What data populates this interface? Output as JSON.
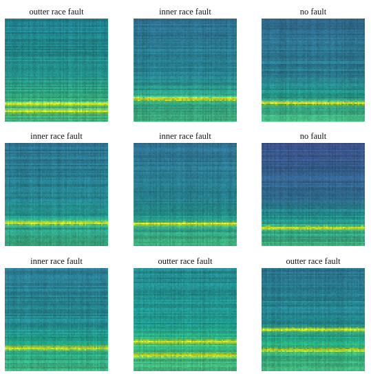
{
  "chart_data": {
    "type": "heatmap",
    "colormap": "viridis",
    "layout": "3x3 grid",
    "panels": [
      {
        "title": "outter race fault",
        "colors": [
          "#1f7f8c",
          "#238f88",
          "#2fa57f",
          "#83d04b",
          "#d2e21b",
          "#44b27a"
        ],
        "band_rows": [
          0.83,
          0.9
        ]
      },
      {
        "title": "inner race fault",
        "colors": [
          "#2d6e8e",
          "#26828e",
          "#2a9a84",
          "#6cce59",
          "#e6e419",
          "#3fae7a"
        ],
        "band_rows": [
          0.78
        ]
      },
      {
        "title": "no fault",
        "colors": [
          "#2f6b8e",
          "#297b8e",
          "#229085",
          "#65cb5e",
          "#e0e31e",
          "#45b27a"
        ],
        "band_rows": [
          0.82
        ]
      },
      {
        "title": "inner race fault",
        "colors": [
          "#2c728e",
          "#25838e",
          "#22978a",
          "#74d055",
          "#d8e219",
          "#3aaa7e"
        ],
        "band_rows": [
          0.78
        ]
      },
      {
        "title": "inner race fault",
        "colors": [
          "#2e6f8e",
          "#26818e",
          "#23948a",
          "#75d054",
          "#dde318",
          "#40ae7a"
        ],
        "band_rows": [
          0.79
        ]
      },
      {
        "title": "no fault",
        "colors": [
          "#3b528b",
          "#2f6c8e",
          "#21918c",
          "#5ec962",
          "#d5e21a",
          "#3fae7a"
        ],
        "band_rows": [
          0.83
        ]
      },
      {
        "title": "inner race fault",
        "colors": [
          "#2a778e",
          "#23888e",
          "#20a386",
          "#86d549",
          "#e0e319",
          "#3dac7c"
        ],
        "band_rows": [
          0.78
        ]
      },
      {
        "title": "outter race fault",
        "colors": [
          "#23888e",
          "#1f968b",
          "#2fb47c",
          "#8ed645",
          "#dce319",
          "#45b27a"
        ],
        "band_rows": [
          0.72,
          0.85
        ]
      },
      {
        "title": "outter race fault",
        "colors": [
          "#2b748e",
          "#23898e",
          "#27ad81",
          "#7ad151",
          "#cfe11c",
          "#42b07a"
        ],
        "band_rows": [
          0.6,
          0.8
        ]
      }
    ]
  }
}
